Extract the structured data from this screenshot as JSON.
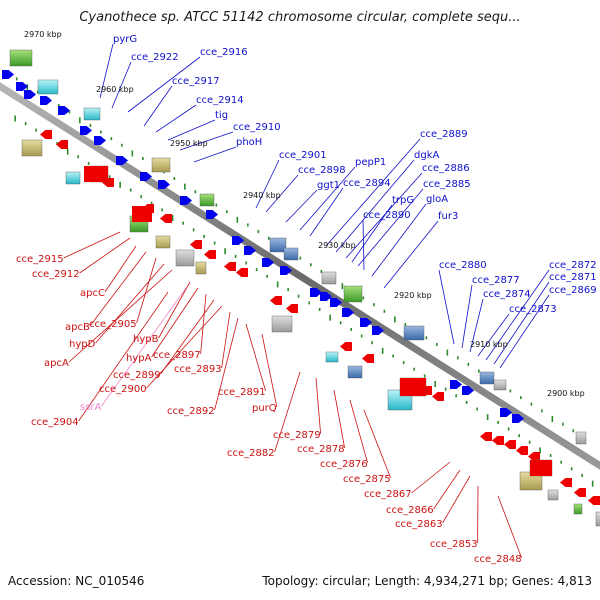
{
  "title": "Cyanothece sp. ATCC 51142 chromosome circular, complete sequ...",
  "footer": {
    "accession": "Accession: NC_010546",
    "summary": "Topology: circular; Length: 4,934,271 bp; Genes: 4,813"
  },
  "colors": {
    "forward_label": "#1010cc",
    "reverse_label": "#cc1111",
    "pseudo_label": "#ee88cc",
    "backbone": "#808080",
    "tick": "#2a8a2a",
    "forward_gene": "#0000ee",
    "reverse_gene": "#ee0000"
  },
  "kbp_markers": [
    "2970 kbp",
    "2960 kbp",
    "2950 kbp",
    "2940 kbp",
    "2930 kbp",
    "2920 kbp",
    "2910 kbp",
    "2900 kbp"
  ],
  "top_labels": [
    "pyrG",
    "cce_2922",
    "cce_2916",
    "cce_2917",
    "cce_2914",
    "tig",
    "cce_2910",
    "phoH",
    "cce_2901",
    "cce_2898",
    "ggt1",
    "pepP1",
    "cce_2894",
    "cce_2889",
    "dgkA",
    "cce_2886",
    "trpG",
    "cce_2885",
    "cce_2890",
    "gloA",
    "fur3",
    "cce_2880",
    "cce_2877",
    "cce_2874",
    "cce_2873",
    "cce_2872",
    "cce_2871",
    "cce_2869"
  ],
  "bottom_labels": [
    "cce_2915",
    "cce_2912",
    "apcC",
    "apcB",
    "cce_2905",
    "hypD",
    "apcA",
    "hypB",
    "hypA",
    "cce_2897",
    "cce_2899",
    "cce_2900",
    "cce_2893",
    "ssrA",
    "cce_2904",
    "cce_2892",
    "cce_2891",
    "purQ",
    "cce_2879",
    "cce_2882",
    "cce_2878",
    "cce_2876",
    "cce_2875",
    "cce_2867",
    "cce_2866",
    "cce_2863",
    "cce_2853",
    "cce_2848"
  ]
}
